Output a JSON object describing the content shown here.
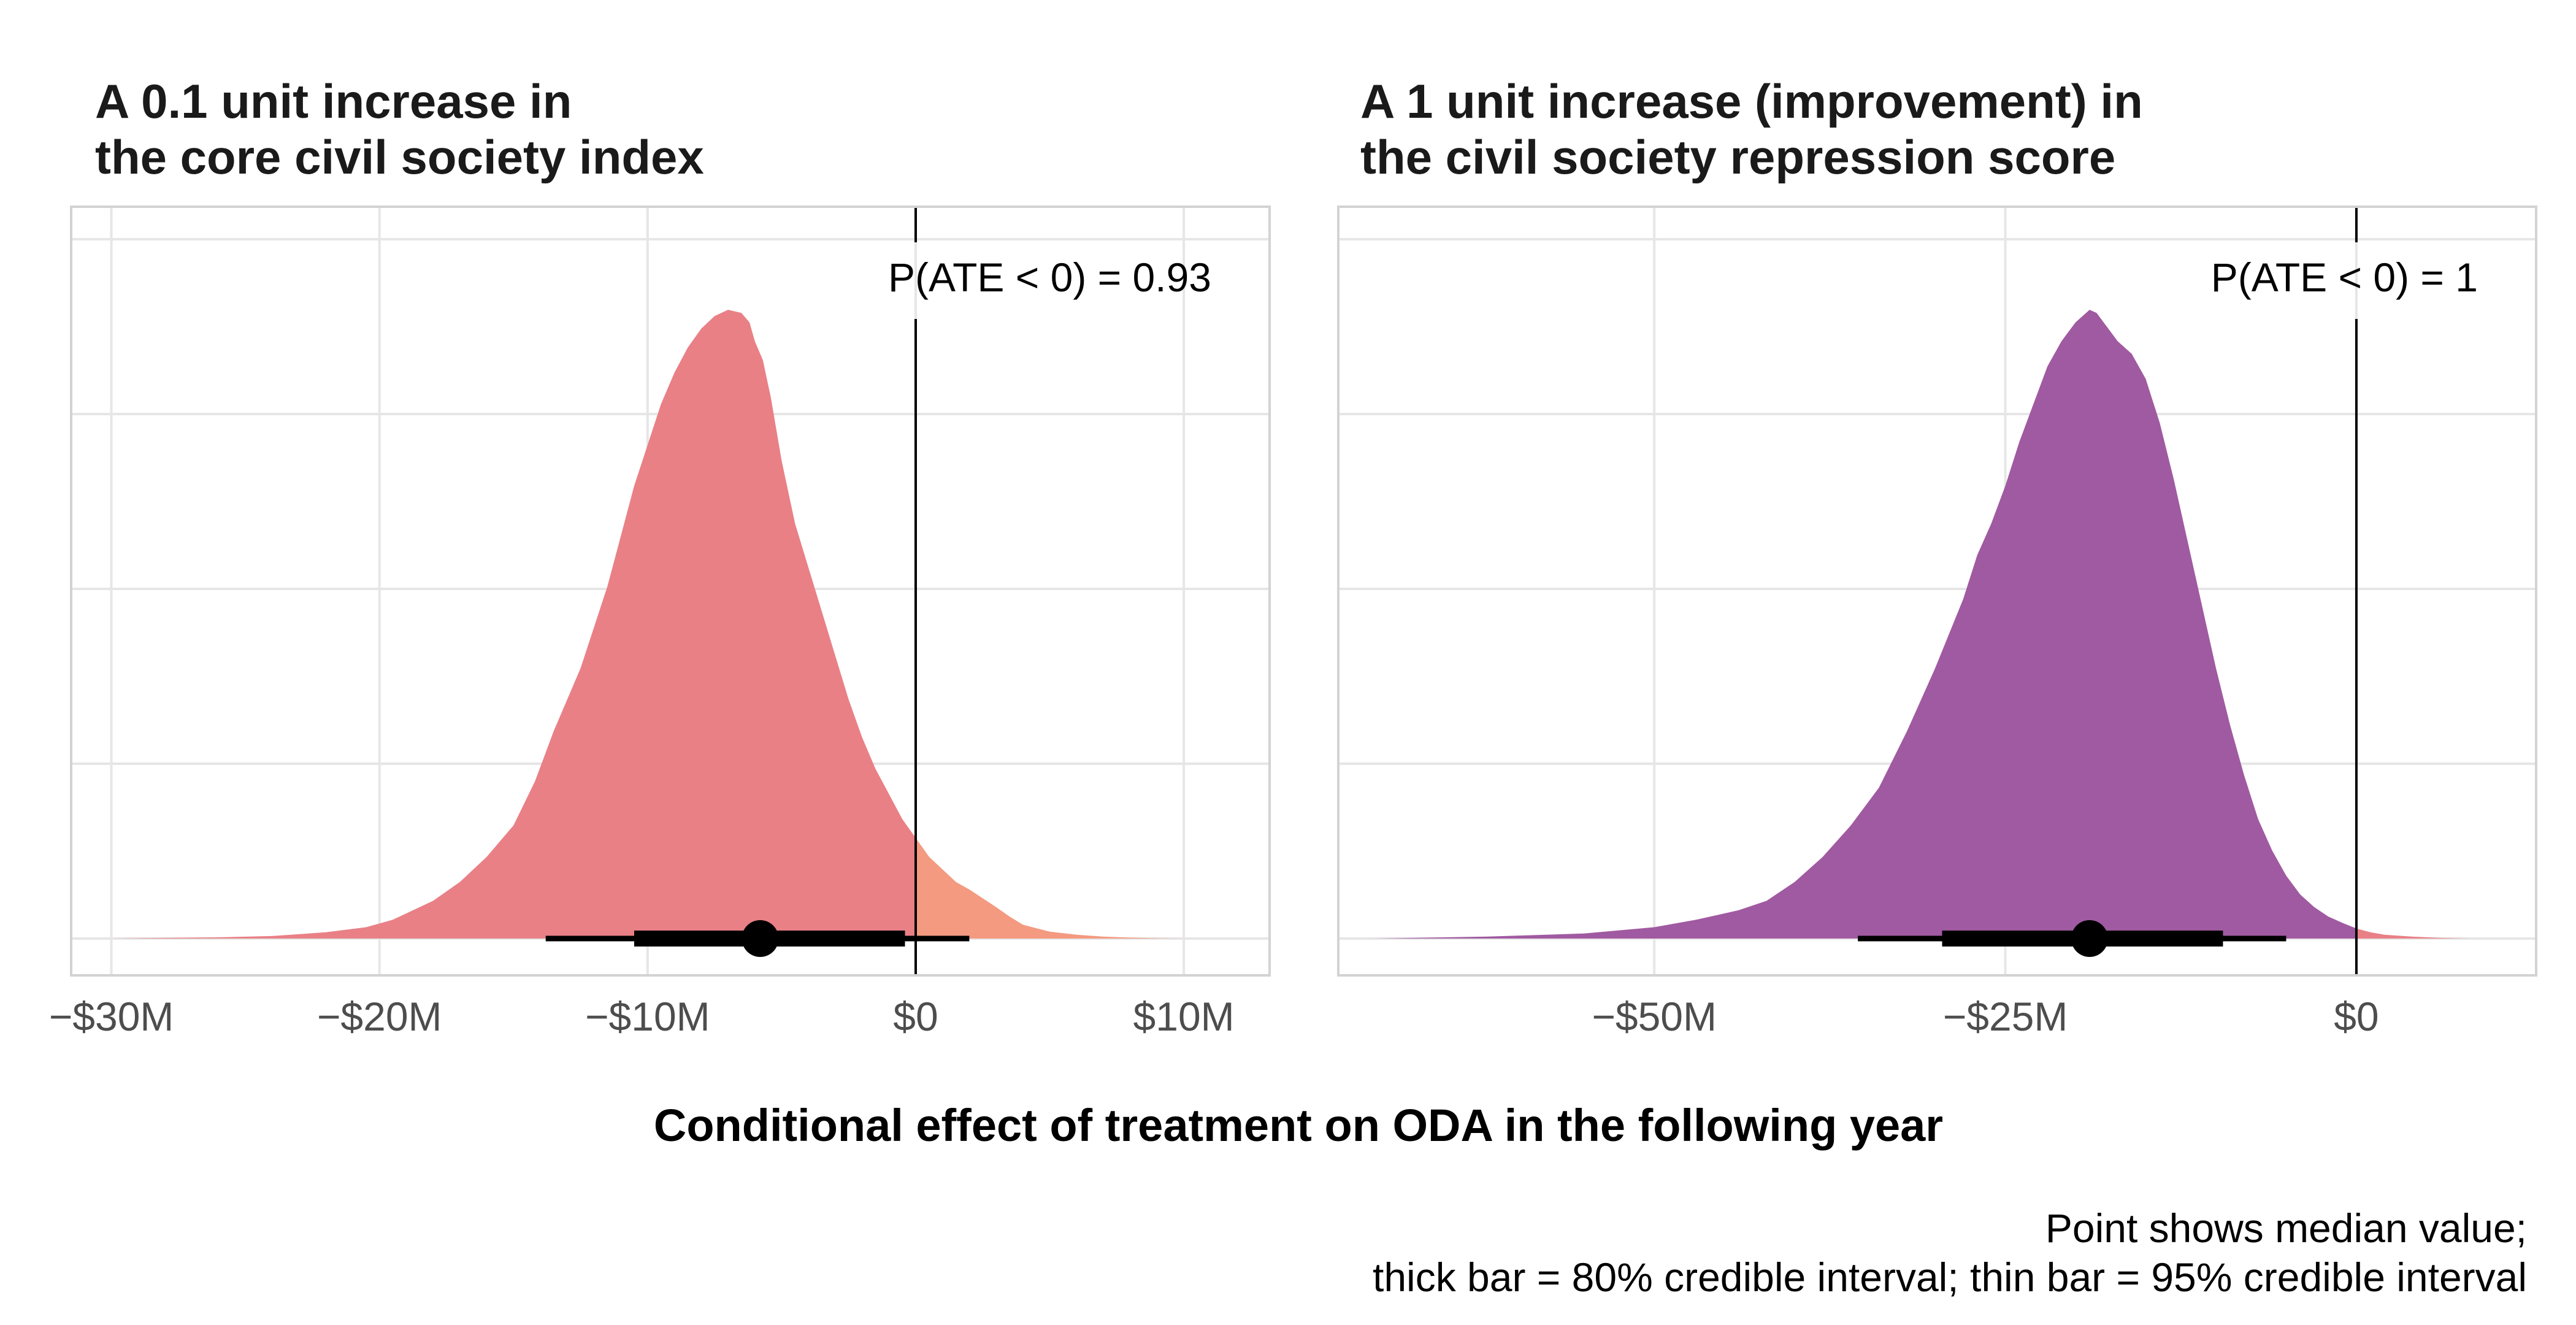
{
  "x_axis_title": "Conditional effect of treatment on ODA in the following year",
  "caption_lines": [
    "Point shows median value;",
    "thick bar = 80% credible interval; thin bar = 95% credible interval"
  ],
  "chart_data": [
    {
      "type": "area",
      "title_lines": [
        "A 0.1 unit increase in",
        "the core civil society index"
      ],
      "annotation": "P(ATE < 0) = 0.93",
      "xlim": [
        -31.5,
        13.2
      ],
      "x_ticks": [
        -30,
        -20,
        -10,
        0,
        10
      ],
      "x_tick_labels": [
        "−$30M",
        "−$20M",
        "−$10M",
        "$0",
        "$10M"
      ],
      "reference_line_x": 0,
      "fill_below_zero": "#E98086",
      "fill_above_zero": "#F39A80",
      "density": {
        "x": [
          -30,
          -26,
          -24,
          -22,
          -20.5,
          -19.5,
          -18,
          -17,
          -16,
          -15,
          -14.2,
          -13.5,
          -12.5,
          -11.5,
          -10.5,
          -9.5,
          -9,
          -8.5,
          -8,
          -7.5,
          -7,
          -6.5,
          -6.2,
          -6,
          -5.7,
          -5.4,
          -5,
          -4.5,
          -4,
          -3.5,
          -3,
          -2.5,
          -2,
          -1.5,
          -1,
          -0.5,
          0,
          0.5,
          1,
          1.5,
          2,
          2.5,
          3,
          3.5,
          4,
          5,
          6,
          7,
          8,
          9,
          10
        ],
        "y": [
          0,
          0.002,
          0.004,
          0.01,
          0.018,
          0.03,
          0.06,
          0.09,
          0.13,
          0.18,
          0.25,
          0.33,
          0.43,
          0.56,
          0.72,
          0.85,
          0.9,
          0.94,
          0.97,
          0.99,
          1.0,
          0.995,
          0.98,
          0.95,
          0.92,
          0.86,
          0.76,
          0.66,
          0.59,
          0.52,
          0.45,
          0.38,
          0.32,
          0.27,
          0.23,
          0.19,
          0.16,
          0.13,
          0.11,
          0.09,
          0.078,
          0.064,
          0.05,
          0.035,
          0.022,
          0.011,
          0.006,
          0.003,
          0.0015,
          0.0005,
          0
        ]
      },
      "median": -5.8,
      "interval_80": [
        -10.5,
        -0.4
      ],
      "interval_95": [
        -13.8,
        2.0
      ]
    },
    {
      "type": "area",
      "title_lines": [
        "A 1 unit increase (improvement) in",
        "the civil society repression score"
      ],
      "annotation": "P(ATE < 0) = 1",
      "xlim": [
        -72.5,
        12.8
      ],
      "x_ticks": [
        -50,
        -25,
        0
      ],
      "x_tick_labels": [
        "−$50M",
        "−$25M",
        "$0"
      ],
      "reference_line_x": 0,
      "fill_below_zero": "#A05AA1",
      "fill_above_zero": "#E98086",
      "density": {
        "x": [
          -70,
          -62,
          -55,
          -50,
          -47,
          -44,
          -42,
          -40,
          -38,
          -36,
          -34,
          -32,
          -30,
          -28,
          -27,
          -26,
          -25,
          -24,
          -23,
          -22,
          -21,
          -20,
          -19.5,
          -19,
          -18.5,
          -18,
          -17.5,
          -17,
          -16,
          -15,
          -14,
          -13,
          -12,
          -11,
          -10,
          -9,
          -8,
          -7,
          -6,
          -5,
          -4,
          -3,
          -2,
          -1,
          0,
          1,
          2,
          4,
          6,
          8
        ],
        "y": [
          0,
          0.003,
          0.008,
          0.018,
          0.03,
          0.045,
          0.06,
          0.09,
          0.13,
          0.18,
          0.24,
          0.33,
          0.43,
          0.54,
          0.61,
          0.66,
          0.72,
          0.79,
          0.85,
          0.91,
          0.95,
          0.98,
          0.99,
          1.0,
          0.995,
          0.98,
          0.965,
          0.95,
          0.93,
          0.89,
          0.82,
          0.73,
          0.63,
          0.53,
          0.43,
          0.34,
          0.26,
          0.19,
          0.14,
          0.1,
          0.07,
          0.05,
          0.035,
          0.025,
          0.016,
          0.01,
          0.006,
          0.003,
          0.001,
          0
        ]
      },
      "median": -19.0,
      "interval_80": [
        -29.5,
        -9.5
      ],
      "interval_95": [
        -35.5,
        -5.0
      ]
    }
  ]
}
